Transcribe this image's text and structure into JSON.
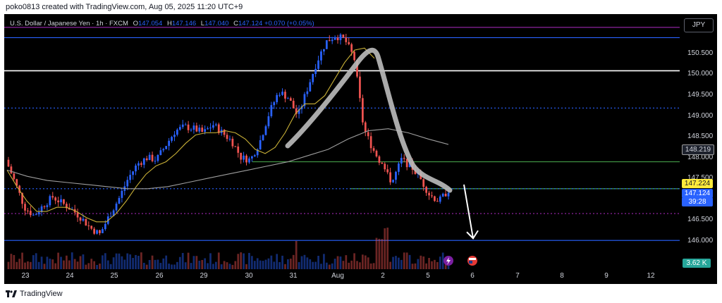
{
  "header": {
    "attribution": "poko0813 created with TradingView.com, Aug 05, 2025 11:20 UTC+9"
  },
  "legend": {
    "symbol": "U.S. Dollar / Japanese Yen · 1h · FXCM",
    "o_label": "O",
    "o": "147.054",
    "h_label": "H",
    "h": "147.146",
    "l_label": "L",
    "l": "147.040",
    "c_label": "C",
    "c": "147.124",
    "change": "+0.070 (+0.05%)"
  },
  "currency_button": "JPY",
  "price_axis": {
    "labels": [
      "150.500",
      "150.000",
      "149.500",
      "149.000",
      "148.500",
      "148.000",
      "147.500",
      "146.500",
      "146.000"
    ],
    "badges": {
      "ma_value": "148.219",
      "yellow_value": "147.224",
      "last_price": "147.124",
      "countdown": "39:28"
    }
  },
  "time_axis": {
    "labels": [
      "23",
      "24",
      "25",
      "26",
      "29",
      "30",
      "31",
      "Aug",
      "2",
      "5",
      "6",
      "7",
      "8",
      "9",
      "12"
    ]
  },
  "volume_badge": "3.62 K",
  "footer": {
    "brand": "TradingView"
  },
  "colors": {
    "up": "#2962ff",
    "down": "#ef5350",
    "background": "#000000",
    "ma_fast": "#c9b037",
    "ma_slow": "#9e9e9e",
    "hline_green": "#4caf50",
    "hline_blue": "#2962ff",
    "hline_purple": "#9c27b0",
    "hline_white": "#ffffff"
  },
  "chart_data": {
    "type": "candlestick",
    "symbol": "USDJPY",
    "timeframe": "1h",
    "y_range": [
      145.75,
      151.2
    ],
    "horizontal_levels": [
      {
        "price": 151.05,
        "color": "purple",
        "style": "solid"
      },
      {
        "price": 150.8,
        "color": "blue",
        "style": "solid"
      },
      {
        "price": 150.0,
        "color": "white",
        "style": "solid"
      },
      {
        "price": 149.1,
        "color": "blue",
        "style": "dotted"
      },
      {
        "price": 147.8,
        "color": "green",
        "style": "solid"
      },
      {
        "price": 147.15,
        "color": "green",
        "style": "solid"
      },
      {
        "price": 147.15,
        "color": "blue",
        "style": "dotted"
      },
      {
        "price": 146.55,
        "color": "purple",
        "style": "dotted"
      },
      {
        "price": 145.9,
        "color": "blue",
        "style": "solid"
      }
    ],
    "price_path": [
      147.85,
      147.3,
      146.7,
      146.5,
      146.75,
      146.95,
      146.8,
      146.65,
      146.45,
      146.2,
      146.05,
      146.5,
      146.9,
      147.4,
      147.75,
      147.9,
      147.85,
      148.2,
      148.55,
      148.65,
      148.6,
      148.5,
      148.7,
      148.5,
      148.3,
      147.9,
      147.85,
      148.3,
      149.0,
      149.5,
      149.35,
      148.9,
      149.55,
      150.2,
      150.7,
      150.85,
      150.75,
      150.3,
      148.6,
      148.1,
      147.7,
      147.3,
      147.85,
      147.7,
      147.4,
      147.0,
      146.85,
      147.12
    ],
    "ma_fast_path": [
      147.6,
      147.2,
      146.85,
      146.6,
      146.6,
      146.7,
      146.7,
      146.6,
      146.45,
      146.35,
      146.35,
      146.55,
      146.85,
      147.2,
      147.5,
      147.7,
      147.8,
      148.0,
      148.25,
      148.45,
      148.5,
      148.5,
      148.55,
      148.5,
      148.35,
      148.1,
      148.0,
      148.15,
      148.5,
      148.95,
      149.2,
      149.2,
      149.4,
      149.8,
      150.2,
      150.5,
      150.55,
      150.3
    ],
    "ma_slow_path": [
      147.6,
      147.45,
      147.35,
      147.3,
      147.25,
      147.2,
      147.15,
      147.15,
      147.2,
      147.3,
      147.4,
      147.5,
      147.6,
      147.7,
      147.8,
      147.95,
      148.1,
      148.35,
      148.55,
      148.6,
      148.5,
      148.35,
      148.22
    ],
    "forecast_arrow": {
      "from_price": 147.25,
      "to_price": 145.95
    }
  }
}
